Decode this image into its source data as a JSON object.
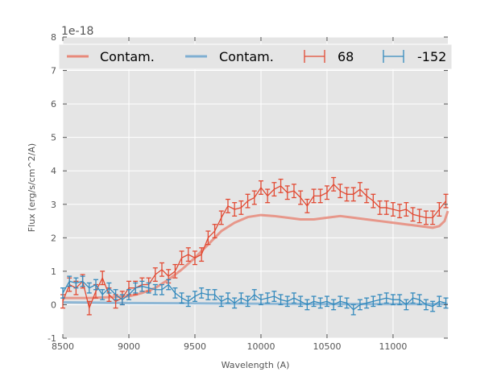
{
  "chart_data": {
    "type": "line",
    "title": "",
    "xlabel": "Wavelength (A)",
    "ylabel": "Flux (erg/s/cm^2/A)",
    "y_offset_label": "1e-18",
    "xlim": [
      8500,
      11415
    ],
    "ylim": [
      -1,
      8
    ],
    "xticks": [
      8500,
      9000,
      9500,
      10000,
      10500,
      11000
    ],
    "yticks": [
      -1,
      0,
      1,
      2,
      3,
      4,
      5,
      6,
      7,
      8
    ],
    "grid": true,
    "legend": {
      "placement": "top",
      "entries": [
        "Contam.",
        "Contam.",
        "68",
        "-152"
      ]
    },
    "colors": {
      "red": "#E24A33",
      "blue": "#348ABD",
      "red_model": "#E8897A",
      "blue_model": "#7FAFD2",
      "bg": "#E5E5E5"
    },
    "x": [
      8500,
      8550,
      8600,
      8650,
      8700,
      8750,
      8800,
      8850,
      8900,
      8950,
      9000,
      9050,
      9100,
      9150,
      9200,
      9250,
      9300,
      9350,
      9400,
      9450,
      9500,
      9550,
      9600,
      9650,
      9700,
      9750,
      9800,
      9850,
      9900,
      9950,
      10000,
      10050,
      10100,
      10150,
      10200,
      10250,
      10300,
      10350,
      10400,
      10450,
      10500,
      10550,
      10600,
      10650,
      10700,
      10750,
      10800,
      10850,
      10900,
      10950,
      11000,
      11050,
      11100,
      11150,
      11200,
      11250,
      11300,
      11350,
      11400
    ],
    "series": [
      {
        "name": "68",
        "kind": "errorbar",
        "color": "#E24A33",
        "values": [
          0.1,
          0.6,
          0.5,
          0.7,
          -0.1,
          0.4,
          0.8,
          0.3,
          0.1,
          0.2,
          0.5,
          0.5,
          0.6,
          0.6,
          0.9,
          1.05,
          0.85,
          1.0,
          1.4,
          1.5,
          1.4,
          1.5,
          2.0,
          2.2,
          2.6,
          2.95,
          2.85,
          2.9,
          3.1,
          3.2,
          3.5,
          3.25,
          3.45,
          3.55,
          3.35,
          3.4,
          3.2,
          2.95,
          3.25,
          3.25,
          3.35,
          3.6,
          3.4,
          3.3,
          3.3,
          3.45,
          3.25,
          3.1,
          2.9,
          2.9,
          2.85,
          2.8,
          2.85,
          2.7,
          2.65,
          2.6,
          2.6,
          2.85,
          3.1
        ],
        "error": 0.2
      },
      {
        "name": "-152",
        "kind": "errorbar",
        "color": "#348ABD",
        "values": [
          0.35,
          0.7,
          0.65,
          0.7,
          0.5,
          0.6,
          0.3,
          0.5,
          0.3,
          0.15,
          0.3,
          0.5,
          0.55,
          0.5,
          0.45,
          0.45,
          0.6,
          0.35,
          0.2,
          0.1,
          0.25,
          0.35,
          0.3,
          0.3,
          0.1,
          0.2,
          0.05,
          0.2,
          0.1,
          0.3,
          0.15,
          0.2,
          0.25,
          0.15,
          0.1,
          0.2,
          0.1,
          0.0,
          0.1,
          0.05,
          0.1,
          0.0,
          0.1,
          0.05,
          -0.15,
          0.0,
          0.05,
          0.1,
          0.15,
          0.2,
          0.15,
          0.15,
          0.0,
          0.2,
          0.15,
          0.0,
          -0.05,
          0.1,
          0.05
        ],
        "error": 0.15
      },
      {
        "name": "Contam.",
        "kind": "model",
        "color": "#E8897A",
        "x": [
          8500,
          8700,
          9000,
          9100,
          9200,
          9300,
          9400,
          9500,
          9600,
          9700,
          9800,
          9900,
          10000,
          10100,
          10200,
          10300,
          10400,
          10500,
          10600,
          10700,
          10800,
          10900,
          11000,
          11100,
          11200,
          11300,
          11350,
          11390,
          11415
        ],
        "values": [
          0.2,
          0.2,
          0.25,
          0.35,
          0.5,
          0.75,
          1.05,
          1.4,
          1.8,
          2.2,
          2.45,
          2.62,
          2.68,
          2.65,
          2.6,
          2.55,
          2.55,
          2.6,
          2.65,
          2.6,
          2.55,
          2.5,
          2.45,
          2.4,
          2.35,
          2.3,
          2.35,
          2.5,
          2.8
        ]
      },
      {
        "name": "Contam.",
        "kind": "model",
        "color": "#7FAFD2",
        "x": [
          8500,
          9000,
          9500,
          10000,
          10500,
          11000,
          11415
        ],
        "values": [
          0.07,
          0.05,
          0.04,
          0.03,
          0.02,
          0.02,
          0.02
        ]
      }
    ]
  }
}
